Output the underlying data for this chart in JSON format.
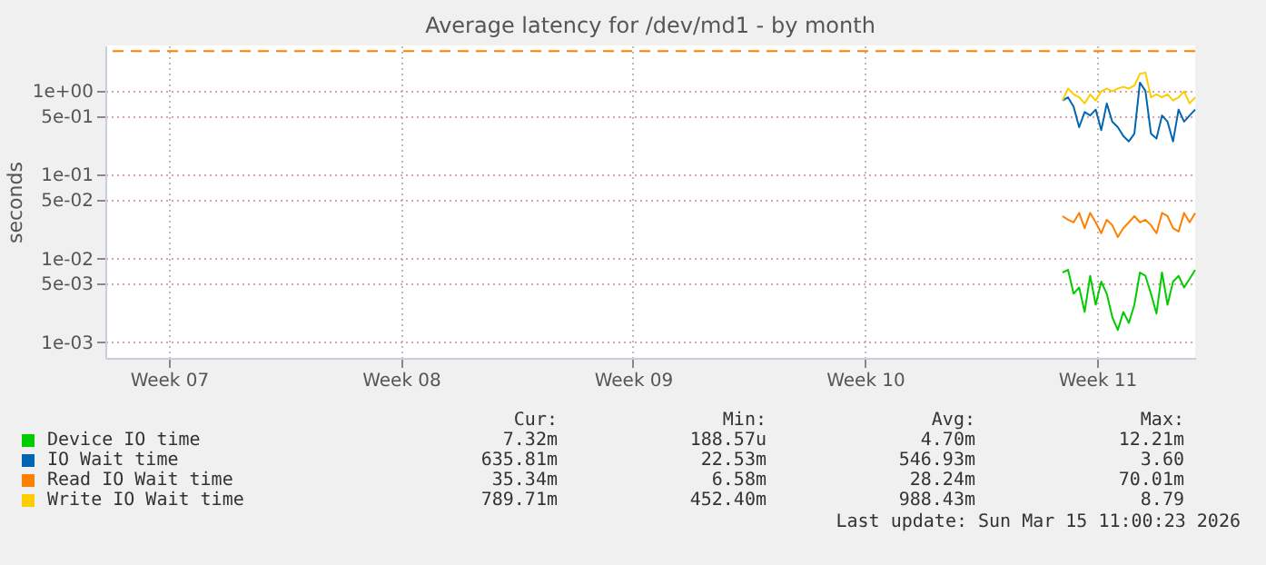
{
  "chart_data": {
    "type": "line",
    "title": "Average latency for /dev/md1 - by month",
    "ylabel": "seconds",
    "log": "y",
    "grid": true,
    "legend": "bottom",
    "x": [
      "2026-03-11T11:00",
      "2026-03-11T15:00",
      "2026-03-11T19:00",
      "2026-03-11T23:00",
      "2026-03-12T03:00",
      "2026-03-12T07:00",
      "2026-03-12T11:00",
      "2026-03-12T15:00",
      "2026-03-12T19:00",
      "2026-03-12T23:00",
      "2026-03-13T03:00",
      "2026-03-13T07:00",
      "2026-03-13T11:00",
      "2026-03-13T15:00",
      "2026-03-13T19:00",
      "2026-03-13T23:00",
      "2026-03-14T03:00",
      "2026-03-14T07:00",
      "2026-03-14T11:00",
      "2026-03-14T15:00",
      "2026-03-14T19:00",
      "2026-03-14T23:00",
      "2026-03-15T03:00",
      "2026-03-15T07:00",
      "2026-03-15T11:00"
    ],
    "xlim": [
      "2026-02-10T14:00",
      "2026-03-15T11:00"
    ],
    "xticks": [
      {
        "value": "2026-02-12T12:00",
        "label": "Week 07"
      },
      {
        "value": "2026-02-19T12:00",
        "label": "Week 08"
      },
      {
        "value": "2026-02-26T12:00",
        "label": "Week 09"
      },
      {
        "value": "2026-03-05T12:00",
        "label": "Week 10"
      },
      {
        "value": "2026-03-12T12:00",
        "label": "Week 11"
      }
    ],
    "ylim": [
      0.00065,
      3.5
    ],
    "yticks": [
      {
        "value": 0.001,
        "label": "1e-03"
      },
      {
        "value": 0.005,
        "label": "5e-03"
      },
      {
        "value": 0.01,
        "label": "1e-02"
      },
      {
        "value": 0.05,
        "label": "5e-02"
      },
      {
        "value": 0.1,
        "label": "1e-01"
      },
      {
        "value": 0.5,
        "label": "5e-01"
      },
      {
        "value": 1,
        "label": "1e+00"
      }
    ],
    "ref_lines": [
      {
        "axis": "y",
        "value": 3,
        "color": "#ff8000",
        "line_style": "dashed"
      }
    ],
    "series": [
      {
        "name": "Device IO time",
        "color": "#00cc00",
        "values": [
          0.0068,
          0.0073,
          0.0038,
          0.0045,
          0.0023,
          0.0062,
          0.0028,
          0.0053,
          0.0038,
          0.002,
          0.0014,
          0.0023,
          0.0017,
          0.0028,
          0.0068,
          0.0062,
          0.0038,
          0.0022,
          0.0068,
          0.0028,
          0.0053,
          0.0062,
          0.0045,
          0.0057,
          0.0073
        ]
      },
      {
        "name": "IO Wait time",
        "color": "#0066b3",
        "values": [
          0.77,
          0.84,
          0.65,
          0.37,
          0.56,
          0.51,
          0.6,
          0.34,
          0.71,
          0.43,
          0.37,
          0.29,
          0.25,
          0.31,
          1.26,
          1.0,
          0.31,
          0.27,
          0.51,
          0.43,
          0.25,
          0.6,
          0.43,
          0.51,
          0.6
        ]
      },
      {
        "name": "Read IO Wait time",
        "color": "#ff8000",
        "values": [
          0.032,
          0.029,
          0.027,
          0.035,
          0.023,
          0.035,
          0.027,
          0.02,
          0.029,
          0.025,
          0.018,
          0.023,
          0.027,
          0.032,
          0.027,
          0.029,
          0.025,
          0.02,
          0.035,
          0.032,
          0.023,
          0.021,
          0.035,
          0.027,
          0.035
        ]
      },
      {
        "name": "Write IO Wait time",
        "color": "#ffcc00",
        "values": [
          0.77,
          1.07,
          0.91,
          0.84,
          0.71,
          0.91,
          0.77,
          0.99,
          1.07,
          0.99,
          1.07,
          1.12,
          1.07,
          1.16,
          1.6,
          1.66,
          0.84,
          0.91,
          0.84,
          0.91,
          0.77,
          0.84,
          0.99,
          0.71,
          0.84
        ]
      }
    ],
    "annotations": [
      "Cur:",
      "Min:",
      "Avg:",
      "Max:",
      "7.32m",
      "188.57u",
      "4.70m",
      "12.21m",
      "635.81m",
      "22.53m",
      "546.93m",
      "3.60",
      "35.34m",
      "6.58m",
      "28.24m",
      "70.01m",
      "789.71m",
      "452.40m",
      "988.43m",
      "8.79",
      "Last update: Sun Mar 15 11:00:23 2026"
    ]
  }
}
